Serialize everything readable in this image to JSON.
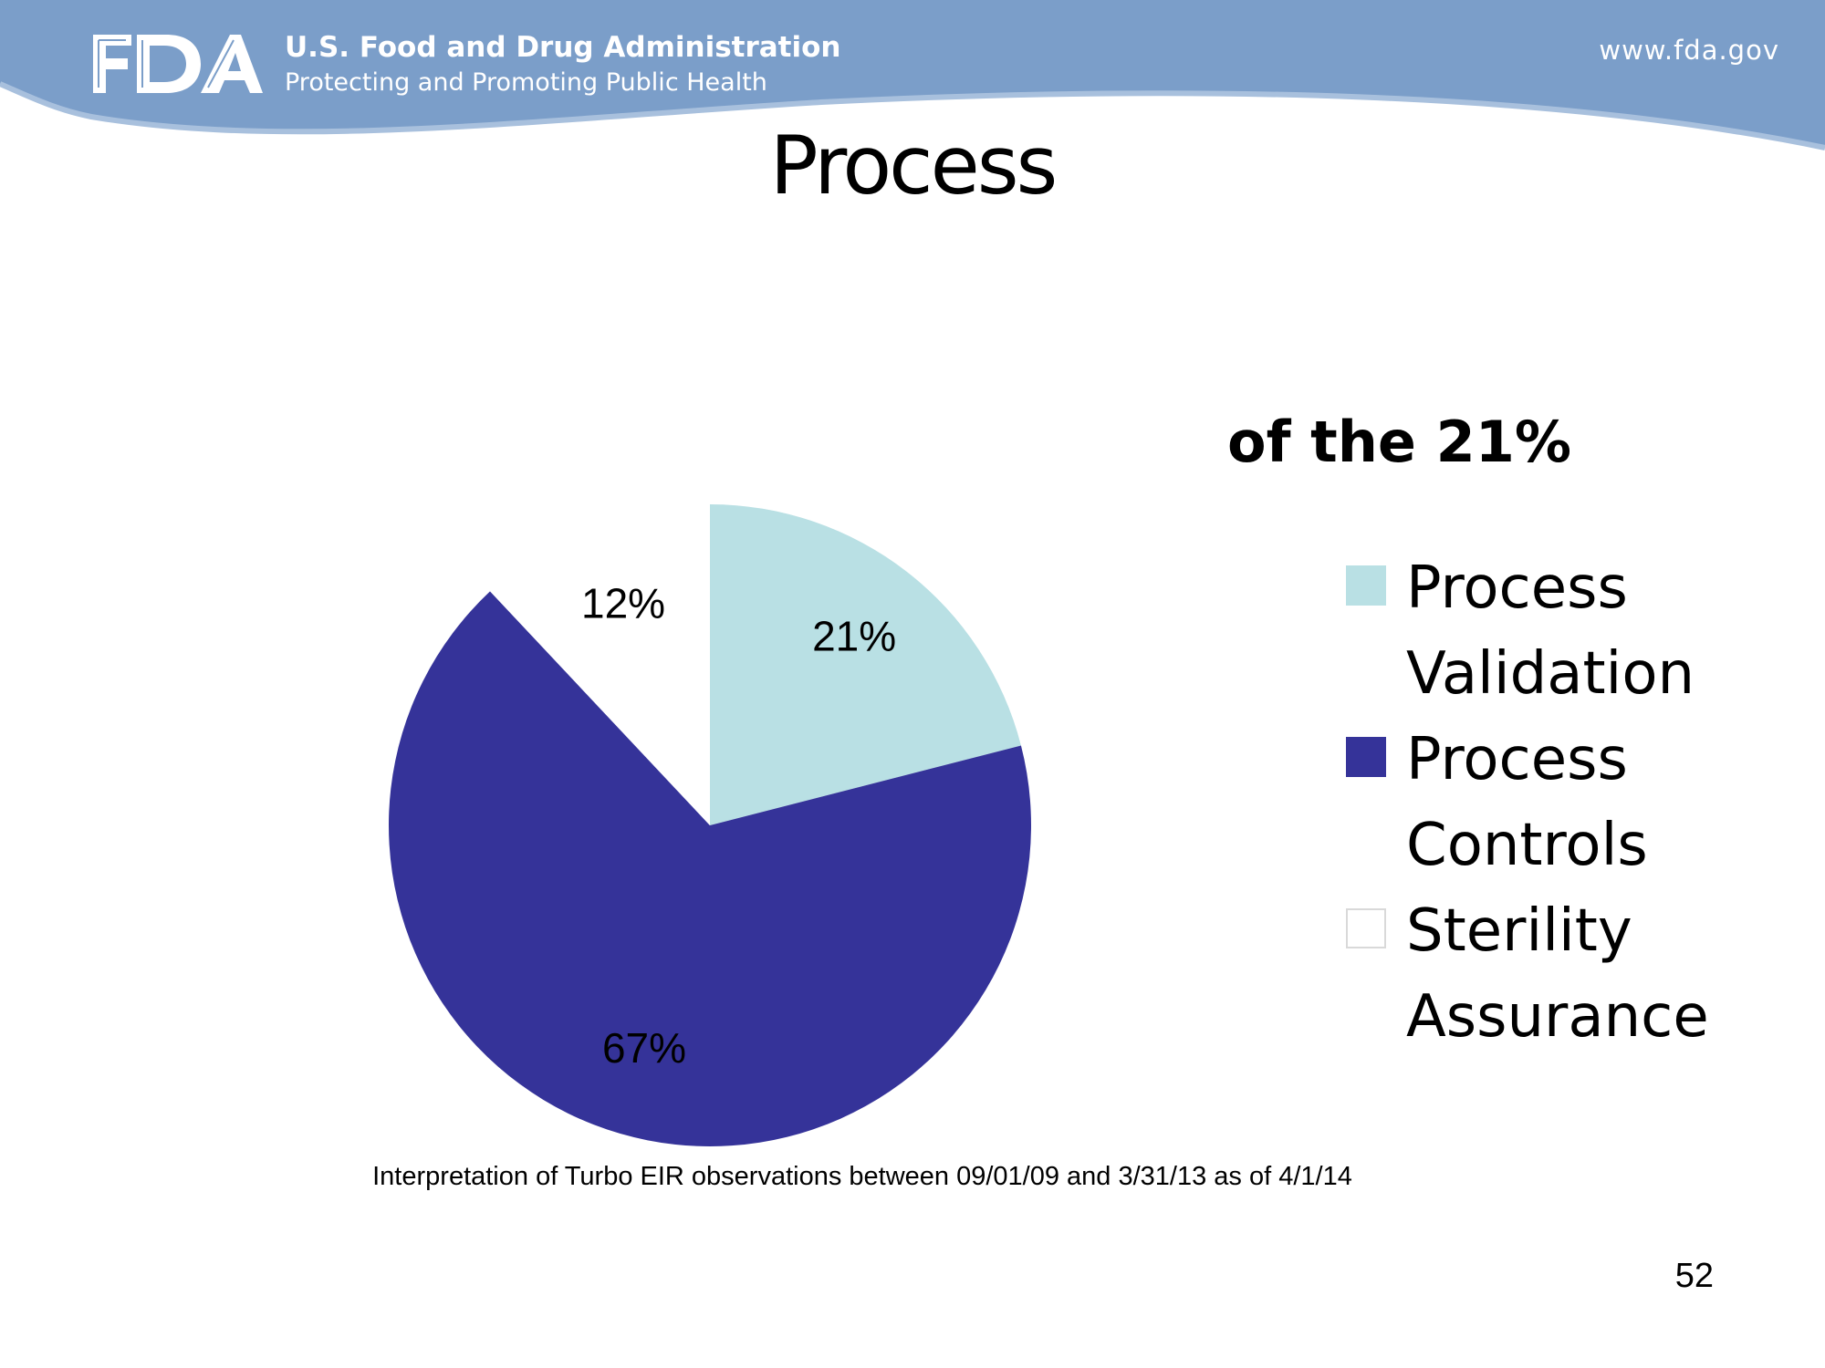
{
  "header": {
    "logo_text": "FDA",
    "agency_name": "U.S. Food and Drug Administration",
    "tagline": "Protecting and Promoting Public Health",
    "website": "www.fda.gov",
    "band_color": "#7b9ec9"
  },
  "slide": {
    "title": "Process",
    "footnote": "Interpretation of Turbo EIR observations between 09/01/09 and 3/31/13 as of 4/1/14",
    "page_number": "52"
  },
  "chart_data": {
    "type": "pie",
    "title": "of the 21%",
    "start_angle": "12 o'clock",
    "direction": "clockwise",
    "legend_position": "right",
    "slices": [
      {
        "label": "Process Validation",
        "value": 21,
        "display": "21%",
        "color": "#b9e0e4"
      },
      {
        "label": "Process Controls",
        "value": 67,
        "display": "67%",
        "color": "#353399"
      },
      {
        "label": "Sterility Assurance",
        "value": 12,
        "display": "12%",
        "color": "#ffffff"
      }
    ]
  }
}
